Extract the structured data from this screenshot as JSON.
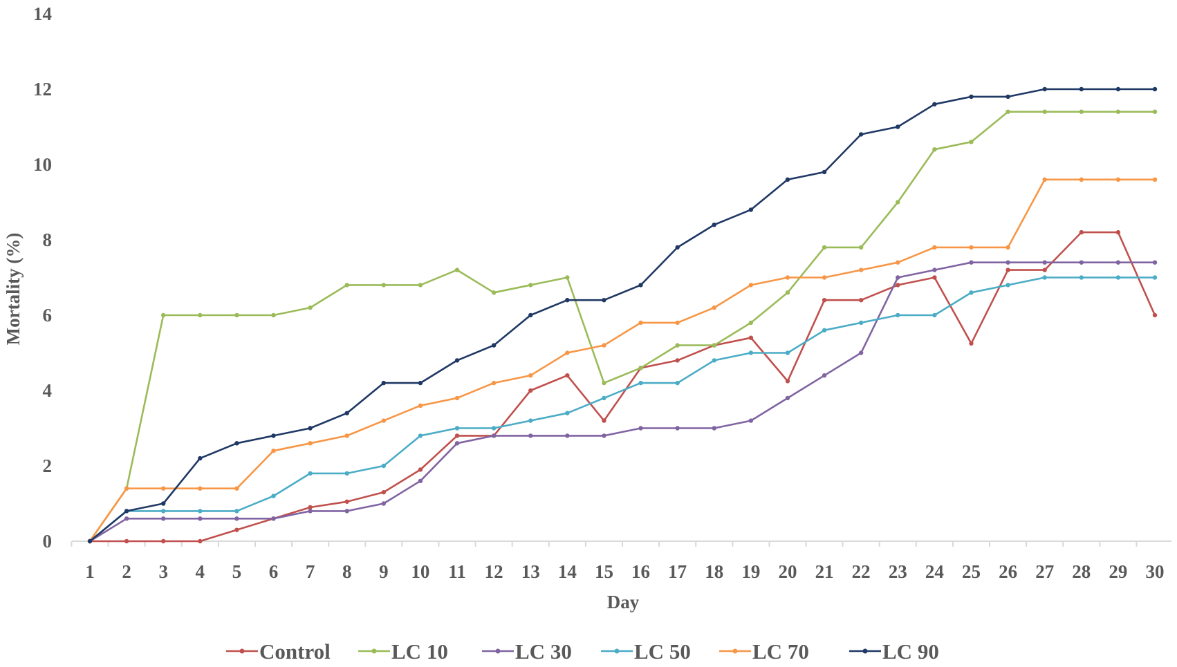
{
  "chart_data": {
    "type": "line",
    "xlabel": "Day",
    "ylabel": "Mortality (%)",
    "ylim": [
      0,
      14
    ],
    "yticks": [
      0,
      2,
      4,
      6,
      8,
      10,
      12,
      14
    ],
    "x": [
      1,
      2,
      3,
      4,
      5,
      6,
      7,
      8,
      9,
      10,
      11,
      12,
      13,
      14,
      15,
      16,
      17,
      18,
      19,
      20,
      21,
      22,
      23,
      24,
      25,
      26,
      27,
      28,
      29,
      30
    ],
    "grid": false,
    "legend_position": "bottom",
    "series": [
      {
        "name": "Control",
        "color": "#c0504d",
        "values": [
          0,
          0,
          0,
          0,
          0.3,
          0.6,
          0.9,
          1.05,
          1.3,
          1.9,
          2.8,
          2.8,
          4.0,
          4.4,
          3.2,
          4.6,
          4.8,
          5.2,
          5.4,
          4.25,
          6.4,
          6.4,
          6.8,
          7.0,
          5.25,
          7.2,
          7.2,
          8.2,
          8.2,
          6.0
        ]
      },
      {
        "name": "LC 10",
        "color": "#9bbb59",
        "values": [
          0,
          1.4,
          6.0,
          6.0,
          6.0,
          6.0,
          6.2,
          6.8,
          6.8,
          6.8,
          7.2,
          6.6,
          6.8,
          7.0,
          4.2,
          4.6,
          5.2,
          5.2,
          5.8,
          6.6,
          7.8,
          7.8,
          9.0,
          10.4,
          10.6,
          11.4,
          11.4,
          11.4,
          11.4,
          11.4
        ]
      },
      {
        "name": "LC 30",
        "color": "#8064a2",
        "values": [
          0,
          0.6,
          0.6,
          0.6,
          0.6,
          0.6,
          0.8,
          0.8,
          1.0,
          1.6,
          2.6,
          2.8,
          2.8,
          2.8,
          2.8,
          3.0,
          3.0,
          3.0,
          3.2,
          3.8,
          4.4,
          5.0,
          7.0,
          7.2,
          7.4,
          7.4,
          7.4,
          7.4,
          7.4,
          7.4
        ]
      },
      {
        "name": "LC 50",
        "color": "#4bacc6",
        "values": [
          0,
          0.8,
          0.8,
          0.8,
          0.8,
          1.2,
          1.8,
          1.8,
          2.0,
          2.8,
          3.0,
          3.0,
          3.2,
          3.4,
          3.8,
          4.2,
          4.2,
          4.8,
          5.0,
          5.0,
          5.6,
          5.8,
          6.0,
          6.0,
          6.6,
          6.8,
          7.0,
          7.0,
          7.0,
          7.0
        ]
      },
      {
        "name": "LC 70",
        "color": "#f79646",
        "values": [
          0,
          1.4,
          1.4,
          1.4,
          1.4,
          2.4,
          2.6,
          2.8,
          3.2,
          3.6,
          3.8,
          4.2,
          4.4,
          5.0,
          5.2,
          5.8,
          5.8,
          6.2,
          6.8,
          7.0,
          7.0,
          7.2,
          7.4,
          7.8,
          7.8,
          7.8,
          9.6,
          9.6,
          9.6,
          9.6
        ]
      },
      {
        "name": "LC 90",
        "color": "#1f3864",
        "values": [
          0,
          0.8,
          1.0,
          2.2,
          2.6,
          2.8,
          3.0,
          3.4,
          4.2,
          4.2,
          4.8,
          5.2,
          6.0,
          6.4,
          6.4,
          6.8,
          7.8,
          8.4,
          8.8,
          9.6,
          9.8,
          10.8,
          11.0,
          11.6,
          11.8,
          11.8,
          12.0,
          12.0,
          12.0,
          12.0
        ]
      }
    ]
  }
}
